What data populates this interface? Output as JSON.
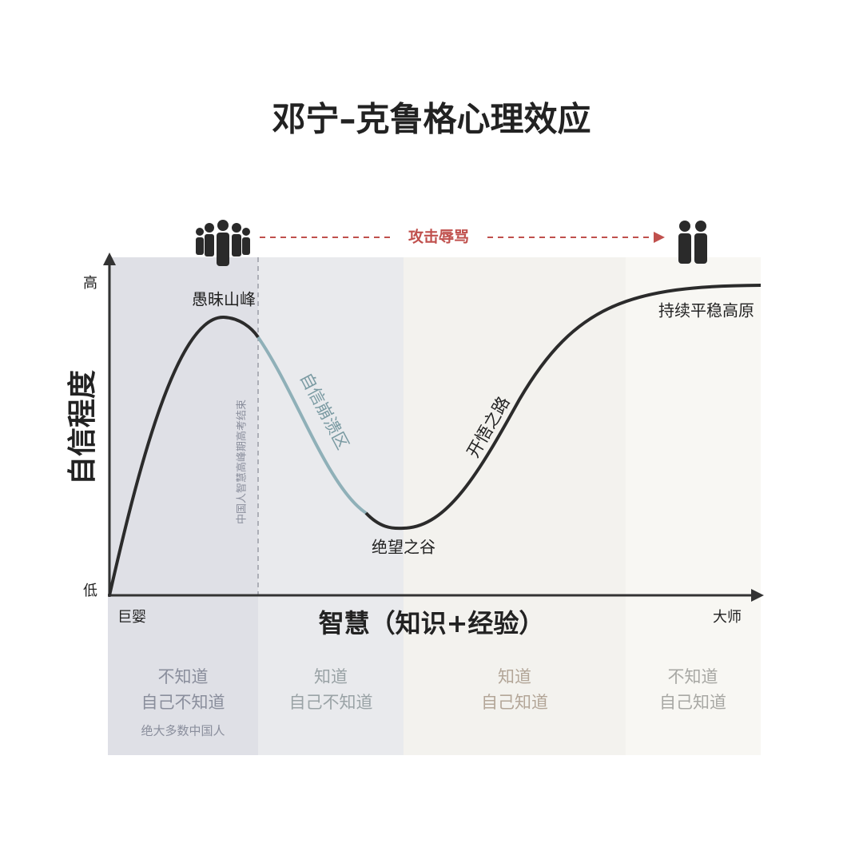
{
  "title": "邓宁–克鲁格心理效应",
  "top_arrow": "攻击辱骂",
  "y_axis": {
    "label": "自信程度",
    "high": "高",
    "low": "低"
  },
  "x_axis": {
    "label": "智慧（知识+经验）",
    "start": "巨婴",
    "end": "大师"
  },
  "curve_labels": {
    "peak": "愚昧山峰",
    "collapse": "自信崩溃区",
    "valley": "绝望之谷",
    "road": "开悟之路",
    "plateau": "持续平稳高原"
  },
  "divider_note": "中国人智慧高峰期高考结束",
  "zones": [
    {
      "lines": [
        "不知道",
        "自己不知道"
      ],
      "note": "绝大多数中国人"
    },
    {
      "lines": [
        "知道",
        "自己不知道"
      ]
    },
    {
      "lines": [
        "知道",
        "自己知道"
      ]
    },
    {
      "lines": [
        "不知道",
        "自己知道"
      ]
    }
  ]
}
